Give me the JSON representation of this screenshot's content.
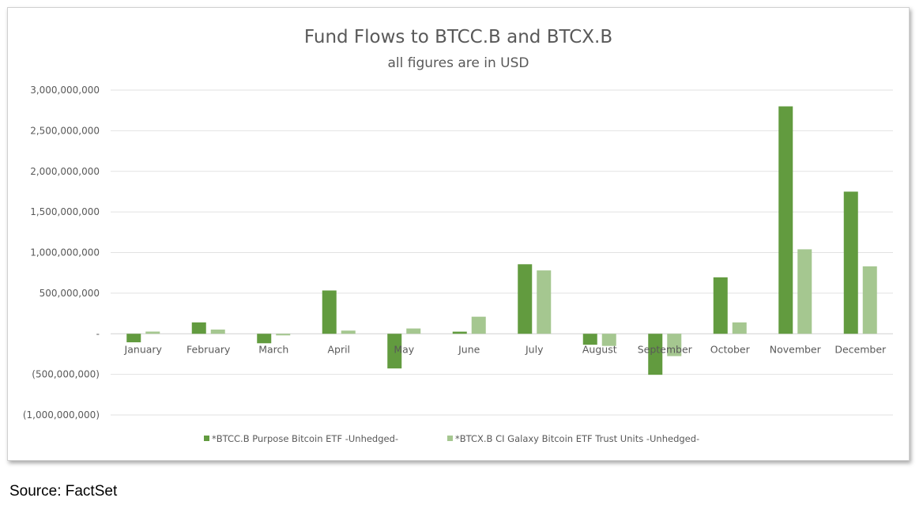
{
  "chart_data": {
    "type": "bar",
    "title": "Fund Flows to BTCC.B and BTCX.B",
    "subtitle": "all figures are in USD",
    "categories": [
      "January",
      "February",
      "March",
      "April",
      "May",
      "June",
      "July",
      "August",
      "September",
      "October",
      "November",
      "December"
    ],
    "series": [
      {
        "name": "*BTCC.B Purpose Bitcoin ETF -Unhedged-",
        "color": "#629b3f",
        "values": [
          -105000000,
          140000000,
          -117000000,
          533000000,
          -427000000,
          26000000,
          856000000,
          -135000000,
          -505000000,
          695000000,
          2800000000,
          1750000000
        ]
      },
      {
        "name": "*BTCX.B CI Galaxy Bitcoin ETF Trust Units -Unhedged-",
        "color": "#a5c790",
        "values": [
          27000000,
          52000000,
          -20000000,
          39000000,
          65000000,
          210000000,
          780000000,
          -150000000,
          -275000000,
          140000000,
          1040000000,
          830000000
        ]
      }
    ],
    "yticks": [
      3000000000,
      2500000000,
      2000000000,
      1500000000,
      1000000000,
      500000000,
      0,
      -500000000,
      -1000000000
    ],
    "ytick_labels": [
      "3,000,000,000",
      "2,500,000,000",
      "2,000,000,000",
      "1,500,000,000",
      "1,000,000,000",
      "500,000,000",
      "-",
      "(500,000,000)",
      "(1,000,000,000)"
    ],
    "ylim": [
      -1000000000,
      3000000000
    ],
    "grid": true,
    "legend_position": "bottom"
  },
  "source": "Source: FactSet"
}
